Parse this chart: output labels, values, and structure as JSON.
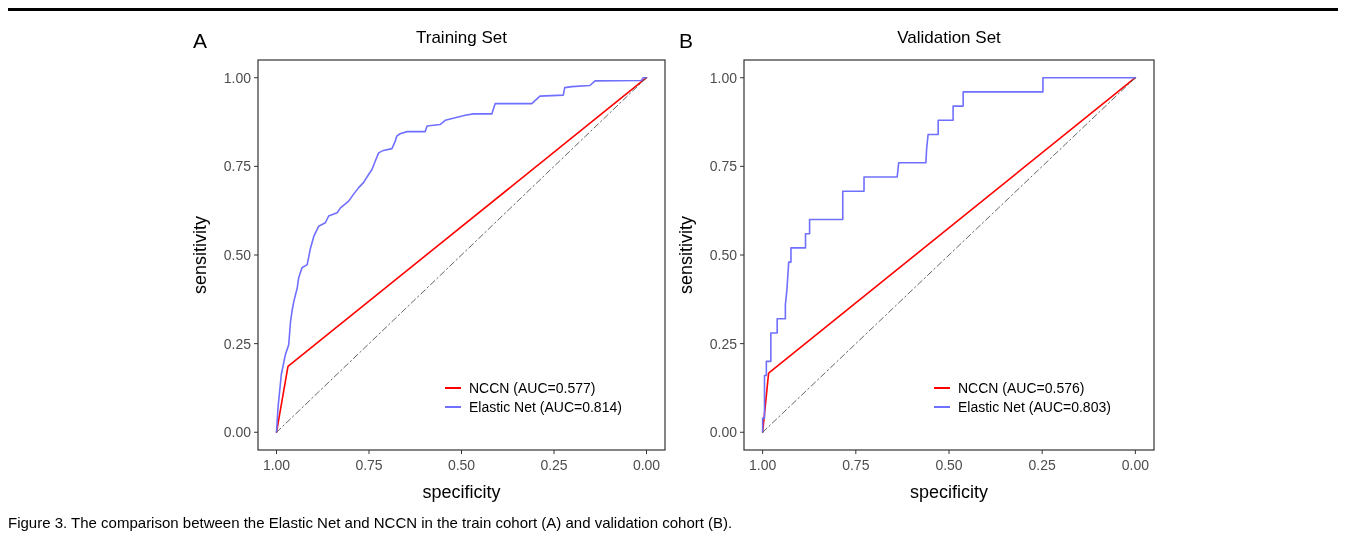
{
  "chart_data": [
    {
      "type": "line",
      "title": "Training Set",
      "xlabel": "specificity",
      "ylabel": "sensitivity",
      "annotations": [
        "A",
        "Figure 3. The comparison between the Elastic Net and NCCN in the train cohort (A) and validation cohort (B)."
      ],
      "xlim": [
        1.05,
        -0.05
      ],
      "ylim": [
        -0.05,
        1.05
      ],
      "xticks": [
        {
          "value": 1,
          "label": "1.00"
        },
        {
          "value": 0.75,
          "label": "0.75"
        },
        {
          "value": 0.5,
          "label": "0.50"
        },
        {
          "value": 0.25,
          "label": "0.25"
        },
        {
          "value": 0,
          "label": "0.00"
        }
      ],
      "yticks": [
        {
          "value": 0,
          "label": "0.00"
        },
        {
          "value": 0.25,
          "label": "0.25"
        },
        {
          "value": 0.5,
          "label": "0.50"
        },
        {
          "value": 0.75,
          "label": "0.75"
        },
        {
          "value": 1,
          "label": "1.00"
        }
      ],
      "grid": false,
      "legend": "bottom right",
      "series": [
        {
          "color": "#555555",
          "line_style": "dashed",
          "x": [
            1,
            0
          ],
          "values": [
            0,
            1
          ]
        },
        {
          "name": "NCCN (AUC=0.577)",
          "color": "#ff0000",
          "x": [
            1,
            0.969,
            0
          ],
          "values": [
            0,
            0.186,
            1
          ]
        },
        {
          "name": "Elastic Net (AUC=0.814)",
          "color": "#7070ff",
          "x": [
            1,
            0.996,
            0.987,
            0.976,
            0.967,
            0.962,
            0.958,
            0.953,
            0.944,
            0.94,
            0.931,
            0.917,
            0.908,
            0.899,
            0.886,
            0.868,
            0.859,
            0.836,
            0.827,
            0.805,
            0.792,
            0.778,
            0.765,
            0.751,
            0.742,
            0.733,
            0.724,
            0.711,
            0.688,
            0.679,
            0.675,
            0.666,
            0.647,
            0.598,
            0.593,
            0.558,
            0.544,
            0.517,
            0.49,
            0.468,
            0.418,
            0.409,
            0.31,
            0.288,
            0.225,
            0.221,
            0.202,
            0.153,
            0.139,
            0.014,
            0.009,
            0
          ],
          "values": [
            0,
            0.069,
            0.163,
            0.219,
            0.247,
            0.313,
            0.342,
            0.37,
            0.407,
            0.436,
            0.464,
            0.473,
            0.52,
            0.553,
            0.581,
            0.591,
            0.61,
            0.619,
            0.633,
            0.652,
            0.671,
            0.69,
            0.704,
            0.727,
            0.741,
            0.765,
            0.788,
            0.795,
            0.8,
            0.821,
            0.835,
            0.842,
            0.848,
            0.848,
            0.864,
            0.868,
            0.88,
            0.887,
            0.894,
            0.898,
            0.898,
            0.927,
            0.927,
            0.948,
            0.951,
            0.972,
            0.975,
            0.978,
            0.991,
            0.992,
            1,
            1
          ]
        }
      ]
    },
    {
      "type": "line",
      "title": "Validation Set",
      "xlabel": "specificity",
      "ylabel": "sensitivity",
      "annotations": [
        "B"
      ],
      "xlim": [
        1.05,
        -0.05
      ],
      "ylim": [
        -0.05,
        1.05
      ],
      "xticks": [
        {
          "value": 1,
          "label": "1.00"
        },
        {
          "value": 0.75,
          "label": "0.75"
        },
        {
          "value": 0.5,
          "label": "0.50"
        },
        {
          "value": 0.25,
          "label": "0.25"
        },
        {
          "value": 0,
          "label": "0.00"
        }
      ],
      "yticks": [
        {
          "value": 0,
          "label": "0.00"
        },
        {
          "value": 0.25,
          "label": "0.25"
        },
        {
          "value": 0.5,
          "label": "0.50"
        },
        {
          "value": 0.75,
          "label": "0.75"
        },
        {
          "value": 1,
          "label": "1.00"
        }
      ],
      "grid": false,
      "legend": "bottom right",
      "series": [
        {
          "color": "#555555",
          "line_style": "dashed",
          "x": [
            1,
            0
          ],
          "values": [
            0,
            1
          ]
        },
        {
          "name": "NCCN (AUC=0.576)",
          "color": "#ff0000",
          "x": [
            1,
            0.984,
            0
          ],
          "values": [
            0,
            0.167,
            1
          ]
        },
        {
          "name": "Elastic Net (AUC=0.803)",
          "color": "#7070ff",
          "x": [
            1,
            1,
            0.995,
            0.995,
            0.99,
            0.99,
            0.978,
            0.978,
            0.961,
            0.961,
            0.939,
            0.939,
            0.935,
            0.93,
            0.924,
            0.924,
            0.885,
            0.885,
            0.874,
            0.874,
            0.785,
            0.785,
            0.728,
            0.728,
            0.639,
            0.635,
            0.562,
            0.56,
            0.556,
            0.529,
            0.529,
            0.489,
            0.489,
            0.462,
            0.462,
            0.248,
            0.248,
            0
          ],
          "values": [
            0,
            0.04,
            0.04,
            0.16,
            0.16,
            0.2,
            0.2,
            0.28,
            0.28,
            0.32,
            0.32,
            0.36,
            0.4,
            0.48,
            0.48,
            0.52,
            0.52,
            0.56,
            0.56,
            0.6,
            0.6,
            0.68,
            0.68,
            0.72,
            0.72,
            0.76,
            0.76,
            0.8,
            0.84,
            0.84,
            0.88,
            0.88,
            0.92,
            0.92,
            0.96,
            0.96,
            1,
            1
          ]
        }
      ]
    }
  ]
}
